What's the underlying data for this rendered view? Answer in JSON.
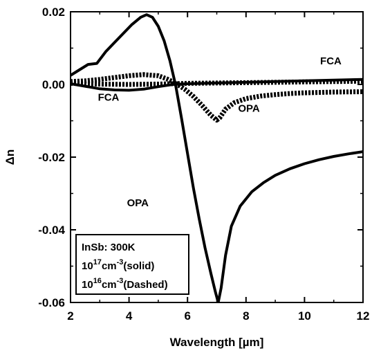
{
  "chart_data": {
    "type": "line",
    "title": "",
    "xlabel": "Wavelength [µm]",
    "ylabel": "Δn",
    "xlim": [
      2,
      12
    ],
    "ylim": [
      -0.06,
      0.02
    ],
    "xticks": [
      2,
      4,
      6,
      8,
      10,
      12
    ],
    "xtick_labels": [
      "2",
      "4",
      "6",
      "8",
      "10",
      "12"
    ],
    "yticks": [
      -0.06,
      -0.04,
      -0.02,
      0.0,
      0.02
    ],
    "ytick_labels": [
      "-0.06",
      "-0.04",
      "-0.02",
      "0.00",
      "0.02"
    ],
    "grid": false,
    "series": [
      {
        "label": "OPA",
        "concentration": "1e17",
        "style": "solid",
        "x": [
          2.0,
          2.3,
          2.6,
          2.9,
          3.2,
          3.5,
          3.8,
          4.1,
          4.4,
          4.6,
          4.8,
          5.0,
          5.2,
          5.4,
          5.6,
          5.8,
          6.0,
          6.2,
          6.4,
          6.6,
          6.8,
          6.95,
          7.05,
          7.15,
          7.3,
          7.5,
          7.8,
          8.2,
          8.6,
          9.0,
          9.5,
          10.0,
          10.5,
          11.0,
          11.5,
          12.0
        ],
        "y": [
          0.0025,
          0.004,
          0.0055,
          0.0058,
          0.009,
          0.0115,
          0.014,
          0.0165,
          0.0185,
          0.0192,
          0.0185,
          0.016,
          0.012,
          0.0065,
          -0.0005,
          -0.0095,
          -0.019,
          -0.0285,
          -0.037,
          -0.045,
          -0.052,
          -0.057,
          -0.06,
          -0.056,
          -0.047,
          -0.039,
          -0.0335,
          -0.0295,
          -0.027,
          -0.025,
          -0.0232,
          -0.0218,
          -0.0207,
          -0.0198,
          -0.0191,
          -0.0185
        ]
      },
      {
        "label": "FCA",
        "concentration": "1e17",
        "style": "solid",
        "x": [
          2.0,
          2.5,
          3.0,
          3.5,
          4.0,
          4.5,
          5.0,
          5.5,
          6.0,
          7.0,
          8.0,
          9.0,
          10.0,
          11.0,
          12.0
        ],
        "y": [
          0.0002,
          -0.0005,
          -0.0012,
          -0.0015,
          -0.0016,
          -0.0013,
          -0.0006,
          0.0,
          0.0002,
          0.0004,
          0.0006,
          0.0008,
          0.001,
          0.0012,
          0.0014
        ]
      },
      {
        "label": "OPA",
        "concentration": "1e16",
        "style": "dashed",
        "x": [
          2.0,
          2.5,
          3.0,
          3.5,
          4.0,
          4.5,
          5.0,
          5.3,
          5.6,
          5.9,
          6.2,
          6.5,
          6.8,
          7.0,
          7.1,
          7.3,
          7.6,
          8.0,
          8.5,
          9.0,
          9.5,
          10.0,
          11.0,
          12.0
        ],
        "y": [
          0.0008,
          0.001,
          0.0014,
          0.0019,
          0.0024,
          0.0027,
          0.0024,
          0.0015,
          0.0003,
          -0.0013,
          -0.0033,
          -0.0058,
          -0.0085,
          -0.0098,
          -0.0092,
          -0.0068,
          -0.005,
          -0.0039,
          -0.0032,
          -0.0028,
          -0.0025,
          -0.0023,
          -0.0021,
          -0.002
        ]
      },
      {
        "label": "FCA",
        "concentration": "1e16",
        "style": "dashed",
        "x": [
          2.0,
          3.0,
          4.0,
          5.0,
          6.0,
          7.0,
          8.0,
          9.0,
          10.0,
          11.0,
          12.0
        ],
        "y": [
          0.0003,
          0.0001,
          0.0,
          0.0001,
          0.0003,
          0.0004,
          0.0005,
          0.0006,
          0.0007,
          0.0008,
          0.0009
        ]
      }
    ],
    "annotations": [
      {
        "text": "FCA",
        "x": 10.9,
        "y": 0.0055
      },
      {
        "text": "FCA",
        "x": 3.3,
        "y": -0.0045
      },
      {
        "text": "OPA",
        "x": 8.1,
        "y": -0.0075
      },
      {
        "text": "OPA",
        "x": 4.3,
        "y": -0.0335
      }
    ],
    "legend_box": {
      "position": "bottom-left",
      "lines": [
        {
          "base": "InSb:  300K",
          "sup": "",
          "rest": ""
        },
        {
          "base": "10",
          "sup": "17",
          "rest": "cm",
          "sup2": "-3",
          "tail": "(solid)"
        },
        {
          "base": "10",
          "sup": "16",
          "rest": "cm",
          "sup2": "-3",
          "tail": "(Dashed)"
        }
      ]
    }
  }
}
